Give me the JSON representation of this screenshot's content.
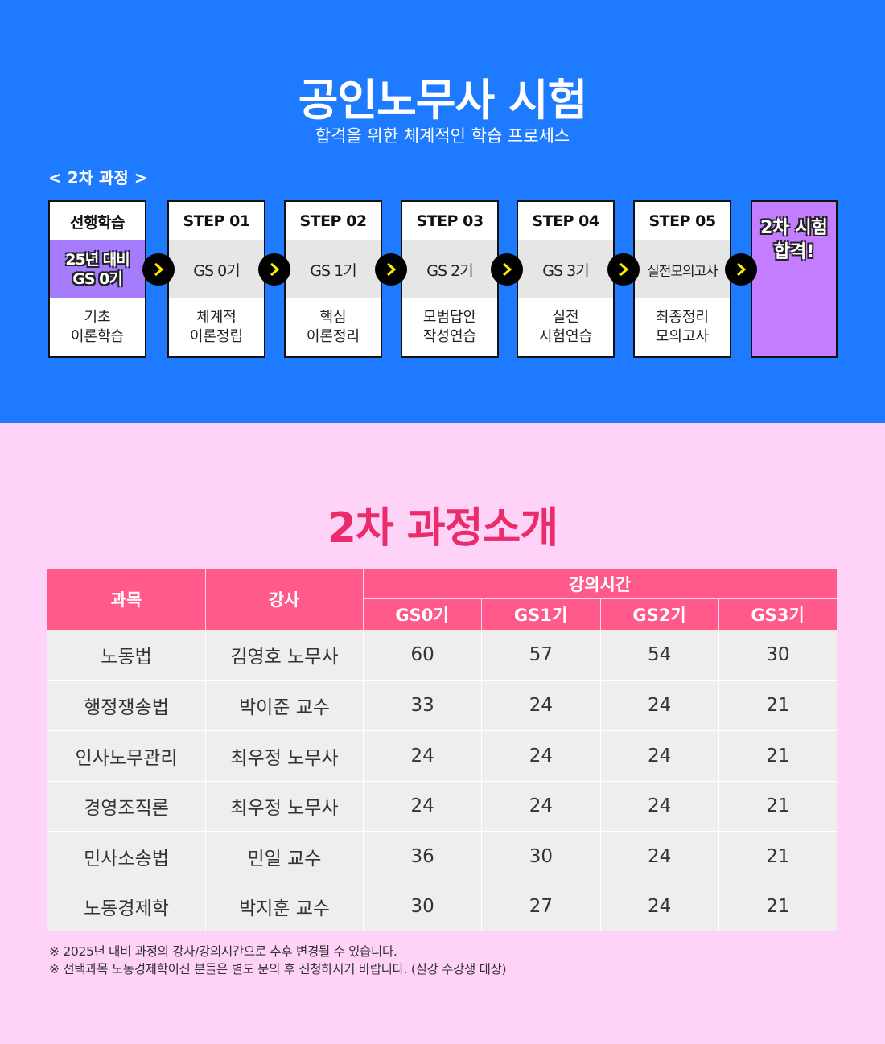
{
  "header": {
    "title": "공인노무사 시험",
    "subtitle": "합격을 위한 체계적인 학습 프로세스",
    "course_label": "< 2차 과정 >"
  },
  "steps": [
    {
      "head": "선행학습",
      "mid_line1": "25년 대비",
      "mid_line2": "GS 0기",
      "foot_line1": "기초",
      "foot_line2": "이론학습"
    },
    {
      "head": "STEP 01",
      "mid": "GS 0기",
      "foot_line1": "체계적",
      "foot_line2": "이론정립"
    },
    {
      "head": "STEP 02",
      "mid": "GS 1기",
      "foot_line1": "핵심",
      "foot_line2": "이론정리"
    },
    {
      "head": "STEP 03",
      "mid": "GS 2기",
      "foot_line1": "모범답안",
      "foot_line2": "작성연습"
    },
    {
      "head": "STEP 04",
      "mid": "GS 3기",
      "foot_line1": "실전",
      "foot_line2": "시험연습"
    },
    {
      "head": "STEP 05",
      "mid": "실전모의고사",
      "foot_line1": "최종정리",
      "foot_line2": "모의고사"
    }
  ],
  "final_step": {
    "line1": "2차 시험",
    "line2": "합격!"
  },
  "course_intro": {
    "title": "2차 과정소개",
    "headers": {
      "subject": "과목",
      "instructor": "강사",
      "lecture_time": "강의시간",
      "gs0": "GS0기",
      "gs1": "GS1기",
      "gs2": "GS2기",
      "gs3": "GS3기"
    },
    "rows": [
      {
        "subject": "노동법",
        "instructor": "김영호 노무사",
        "gs0": "60",
        "gs1": "57",
        "gs2": "54",
        "gs3": "30"
      },
      {
        "subject": "행정쟁송법",
        "instructor": "박이준 교수",
        "gs0": "33",
        "gs1": "24",
        "gs2": "24",
        "gs3": "21"
      },
      {
        "subject": "인사노무관리",
        "instructor": "최우정 노무사",
        "gs0": "24",
        "gs1": "24",
        "gs2": "24",
        "gs3": "21"
      },
      {
        "subject": "경영조직론",
        "instructor": "최우정 노무사",
        "gs0": "24",
        "gs1": "24",
        "gs2": "24",
        "gs3": "21"
      },
      {
        "subject": "민사소송법",
        "instructor": "민일 교수",
        "gs0": "36",
        "gs1": "30",
        "gs2": "24",
        "gs3": "21"
      },
      {
        "subject": "노동경제학",
        "instructor": "박지훈 교수",
        "gs0": "30",
        "gs1": "27",
        "gs2": "24",
        "gs3": "21"
      }
    ],
    "notes": [
      "※ 2025년 대비 과정의 강사/강의시간으로 추후 변경될 수 있습니다.",
      "※ 선택과목 노동경제학이신 분들은 별도 문의 후 신청하시기 바랍니다. (실강 수강생 대상)"
    ]
  },
  "colors": {
    "top_bg": "#1e7bff",
    "bottom_bg": "#ffd2f8",
    "header_pink": "#ff5a8a",
    "title_pink": "#ea2c6a",
    "purple_box": "#a67cff",
    "final_box": "#c47dff",
    "arrow_chevron": "#ffee00"
  }
}
